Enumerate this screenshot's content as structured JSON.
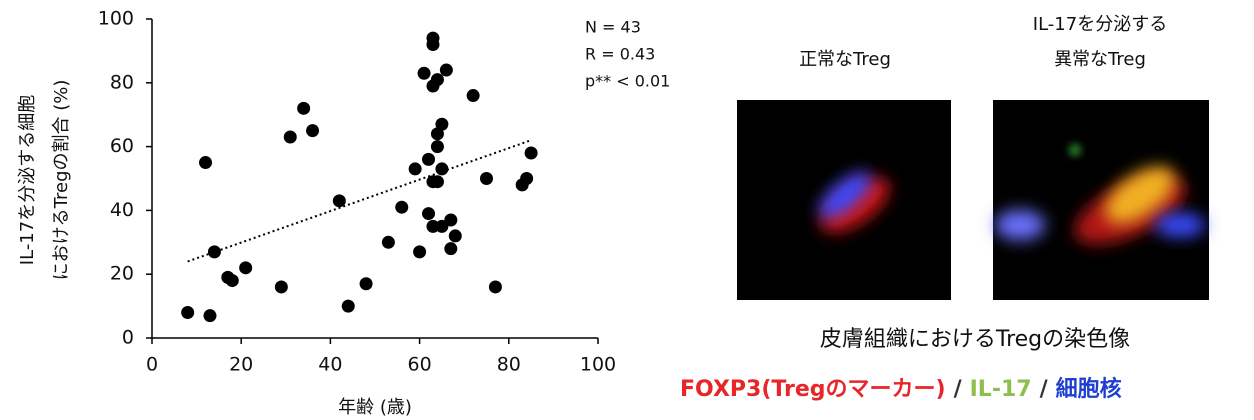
{
  "chart_data": {
    "type": "scatter",
    "color": "#000000",
    "x": [
      8,
      13,
      12,
      14,
      17,
      18,
      21,
      29,
      31,
      34,
      36,
      42,
      44,
      48,
      53,
      56,
      63,
      63,
      61,
      64,
      63,
      66,
      65,
      64,
      64,
      62,
      59,
      65,
      63,
      64,
      62,
      63,
      65,
      67,
      68,
      67,
      60,
      72,
      75,
      77,
      83,
      84,
      85
    ],
    "y": [
      8,
      7,
      55,
      27,
      19,
      18,
      22,
      16,
      63,
      72,
      65,
      43,
      10,
      17,
      30,
      41,
      94,
      92,
      83,
      81,
      79,
      84,
      67,
      64,
      60,
      56,
      53,
      53,
      49,
      49,
      39,
      35,
      35,
      37,
      32,
      28,
      27,
      76,
      50,
      16,
      48,
      50,
      58
    ],
    "trend_x": [
      8,
      85
    ],
    "trend_y": [
      24,
      62
    ],
    "xlim": [
      0,
      100
    ],
    "xticks": [
      0,
      20,
      40,
      60,
      80,
      100
    ],
    "ylim": [
      0,
      100
    ],
    "yticks": [
      0,
      20,
      40,
      60,
      80,
      100
    ],
    "x_label": "年齢 (歳)",
    "y_label": [
      "IL-17を分泌する細胞",
      "におけるTregの割合 (%)"
    ],
    "annotations": [
      "N = 43",
      "R = 0.43",
      "p** < 0.01"
    ]
  },
  "images": {
    "left_label": "正常なTreg",
    "right_label": [
      "IL-17を分泌する",
      "異常なTreg"
    ],
    "caption": "皮膚組織におけるTregの染色像",
    "legend": [
      {
        "text": "FOXP3(Tregのマーカー)",
        "color": "#e8262a"
      },
      {
        "text": "/",
        "color": "#333333"
      },
      {
        "text": "IL-17",
        "color": "#8cc04a"
      },
      {
        "text": "/",
        "color": "#333333"
      },
      {
        "text": "細胞核",
        "color": "#1f3fd0"
      }
    ]
  }
}
